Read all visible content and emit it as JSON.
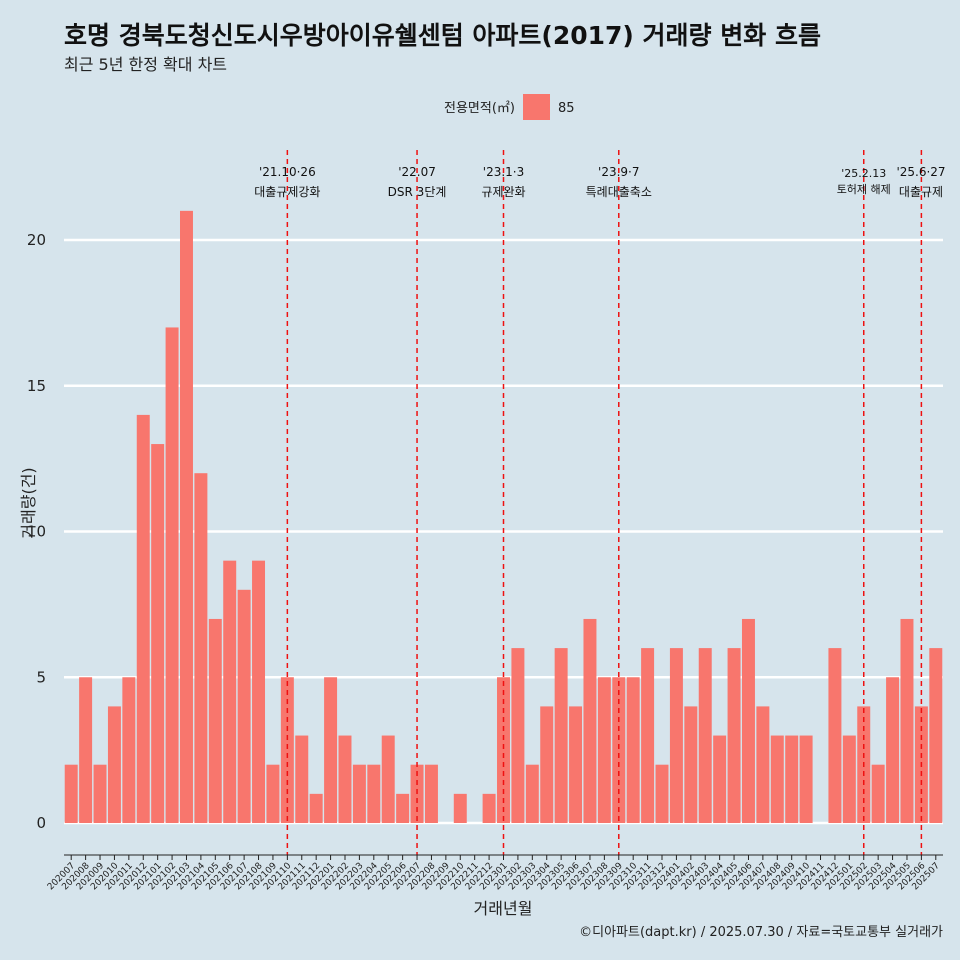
{
  "header": {
    "title": "호명 경북도청신도시우방아이유쉘센텀 아파트(2017) 거래량 변화 흐름",
    "subtitle": "최근 5년 한정 확대 차트"
  },
  "legend": {
    "title": "전용면적(㎡)",
    "label": "85",
    "color": "#f8766d"
  },
  "caption": "©디아파트(dapt.kr) / 2025.07.30 / 자료=국토교통부 실거래가",
  "chart_data": {
    "type": "bar",
    "xlabel": "거래년월",
    "ylabel": "거래량(건)",
    "ylim": [
      0,
      21
    ],
    "yticks": [
      0,
      5,
      10,
      15,
      20
    ],
    "grid": true,
    "legend_position": "top",
    "categories": [
      "202007",
      "202008",
      "202009",
      "202010",
      "202011",
      "202012",
      "202101",
      "202102",
      "202103",
      "202104",
      "202105",
      "202106",
      "202107",
      "202108",
      "202109",
      "202110",
      "202111",
      "202112",
      "202201",
      "202202",
      "202203",
      "202204",
      "202205",
      "202206",
      "202207",
      "202208",
      "202209",
      "202210",
      "202211",
      "202212",
      "202301",
      "202302",
      "202303",
      "202304",
      "202305",
      "202306",
      "202307",
      "202308",
      "202309",
      "202310",
      "202311",
      "202312",
      "202401",
      "202402",
      "202403",
      "202404",
      "202405",
      "202406",
      "202407",
      "202408",
      "202409",
      "202410",
      "202411",
      "202412",
      "202501",
      "202502",
      "202503",
      "202504",
      "202505",
      "202506",
      "202507"
    ],
    "series": [
      {
        "name": "85",
        "color": "#f8766d",
        "values": [
          2,
          5,
          2,
          4,
          5,
          14,
          13,
          17,
          21,
          12,
          7,
          9,
          8,
          9,
          2,
          5,
          3,
          1,
          5,
          3,
          2,
          2,
          3,
          1,
          2,
          2,
          0,
          1,
          0,
          1,
          5,
          6,
          2,
          4,
          6,
          4,
          7,
          5,
          5,
          5,
          6,
          2,
          6,
          4,
          6,
          3,
          6,
          7,
          4,
          3,
          3,
          3,
          0,
          6,
          3,
          4,
          2,
          5,
          7,
          4,
          6
        ]
      }
    ],
    "annotations": [
      {
        "at": "202110",
        "date": "'21.10·26",
        "label": "대출규제강화"
      },
      {
        "at": "202207",
        "date": "'22.07",
        "label": "DSR 3단계"
      },
      {
        "at": "202301",
        "date": "'23.1·3",
        "label": "규제완화"
      },
      {
        "at": "202309",
        "date": "'23.9·7",
        "label": "특례대출축소"
      },
      {
        "at": "202502",
        "date": "'25.2.13",
        "label": "토허제 해제"
      },
      {
        "at": "202506",
        "date": "'25.6·27",
        "label": "대출규제"
      }
    ]
  }
}
